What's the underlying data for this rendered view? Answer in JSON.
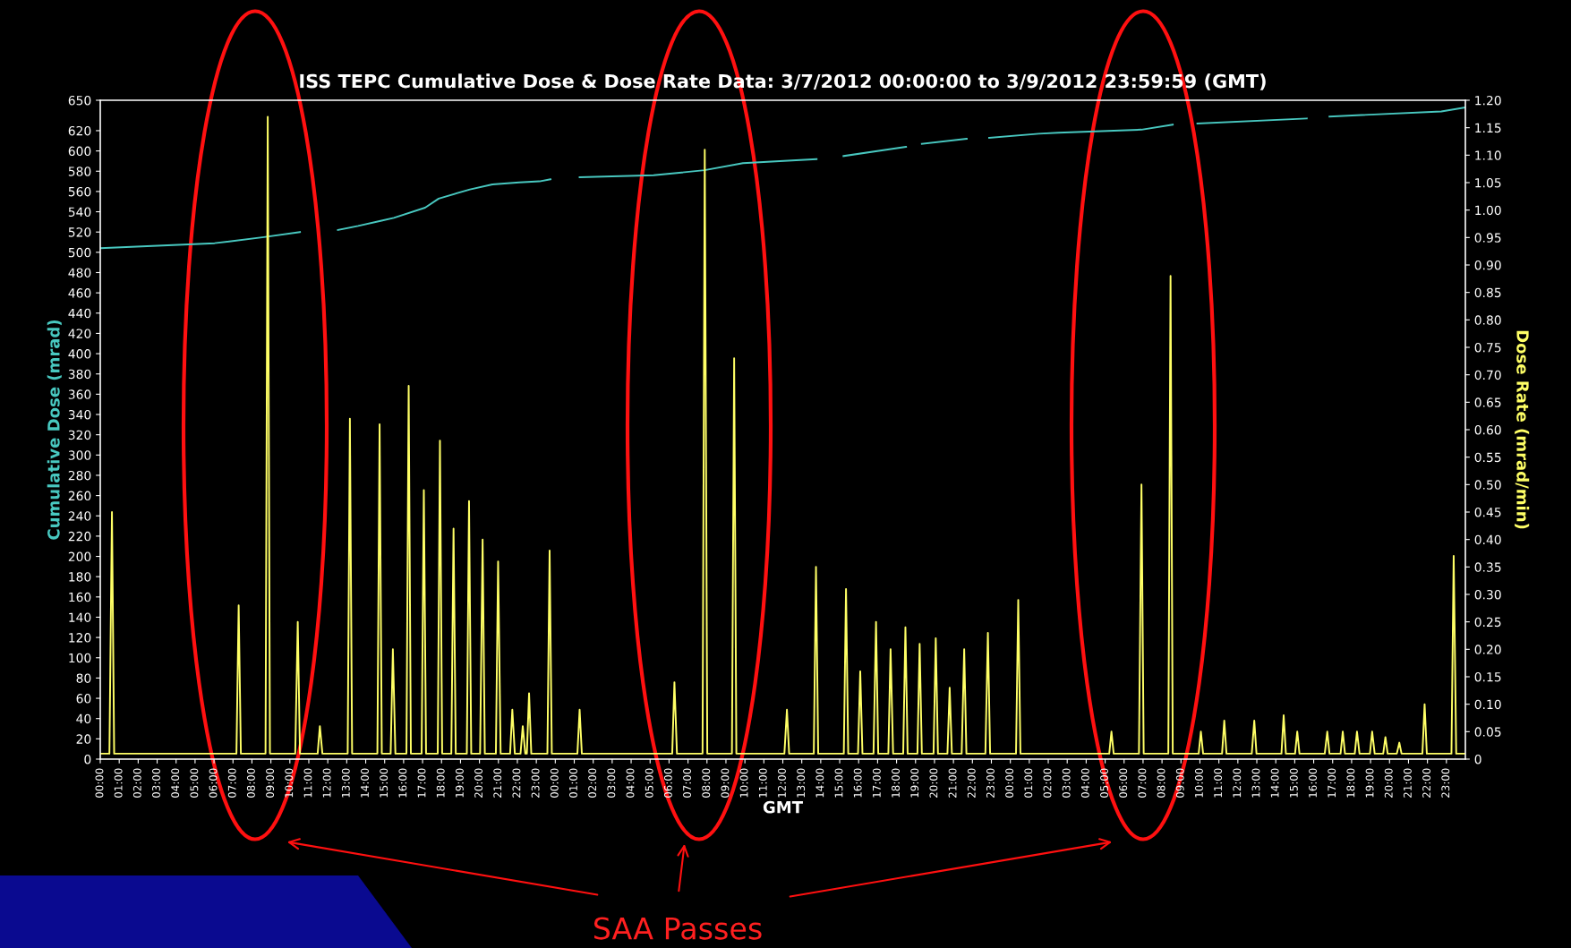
{
  "chart_data": {
    "type": "line",
    "title": "ISS TEPC Cumulative Dose & Dose Rate Data: 3/7/2012 00:00:00 to 3/9/2012 23:59:59 (GMT)",
    "xlabel": "GMT",
    "ylabel": "Cumulative Dose (mrad)",
    "y2label": "Dose Rate (mrad/min)",
    "annotations": [
      "SAA Passes"
    ],
    "xlim": [
      "2012-03-07T00:00",
      "2012-03-10T00:00"
    ],
    "xticks": [
      {
        "value": "2012-03-07T00:00",
        "label": "00:00"
      },
      {
        "value": "2012-03-07T01:00",
        "label": "01:00"
      },
      {
        "value": "2012-03-07T02:00",
        "label": "02:00"
      },
      {
        "value": "2012-03-07T03:00",
        "label": "03:00"
      },
      {
        "value": "2012-03-07T04:00",
        "label": "04:00"
      },
      {
        "value": "2012-03-07T05:00",
        "label": "05:00"
      },
      {
        "value": "2012-03-07T06:00",
        "label": "06:00"
      },
      {
        "value": "2012-03-07T07:00",
        "label": "07:00"
      },
      {
        "value": "2012-03-07T08:00",
        "label": "08:00"
      },
      {
        "value": "2012-03-07T09:00",
        "label": "09:00"
      },
      {
        "value": "2012-03-07T10:00",
        "label": "10:00"
      },
      {
        "value": "2012-03-07T11:00",
        "label": "11:00"
      },
      {
        "value": "2012-03-07T12:00",
        "label": "12:00"
      },
      {
        "value": "2012-03-07T13:00",
        "label": "13:00"
      },
      {
        "value": "2012-03-07T14:00",
        "label": "14:00"
      },
      {
        "value": "2012-03-07T15:00",
        "label": "15:00"
      },
      {
        "value": "2012-03-07T16:00",
        "label": "16:00"
      },
      {
        "value": "2012-03-07T17:00",
        "label": "17:00"
      },
      {
        "value": "2012-03-07T18:00",
        "label": "18:00"
      },
      {
        "value": "2012-03-07T19:00",
        "label": "19:00"
      },
      {
        "value": "2012-03-07T20:00",
        "label": "20:00"
      },
      {
        "value": "2012-03-07T21:00",
        "label": "21:00"
      },
      {
        "value": "2012-03-07T22:00",
        "label": "22:00"
      },
      {
        "value": "2012-03-07T23:00",
        "label": "23:00"
      },
      {
        "value": "2012-03-08T00:00",
        "label": "00:00"
      },
      {
        "value": "2012-03-08T01:00",
        "label": "01:00"
      },
      {
        "value": "2012-03-08T02:00",
        "label": "02:00"
      },
      {
        "value": "2012-03-08T03:00",
        "label": "03:00"
      },
      {
        "value": "2012-03-08T04:00",
        "label": "04:00"
      },
      {
        "value": "2012-03-08T05:00",
        "label": "05:00"
      },
      {
        "value": "2012-03-08T06:00",
        "label": "06:00"
      },
      {
        "value": "2012-03-08T07:00",
        "label": "07:00"
      },
      {
        "value": "2012-03-08T08:00",
        "label": "08:00"
      },
      {
        "value": "2012-03-08T09:00",
        "label": "09:00"
      },
      {
        "value": "2012-03-08T10:00",
        "label": "10:00"
      },
      {
        "value": "2012-03-08T11:00",
        "label": "11:00"
      },
      {
        "value": "2012-03-08T12:00",
        "label": "12:00"
      },
      {
        "value": "2012-03-08T13:00",
        "label": "13:00"
      },
      {
        "value": "2012-03-08T14:00",
        "label": "14:00"
      },
      {
        "value": "2012-03-08T15:00",
        "label": "15:00"
      },
      {
        "value": "2012-03-08T16:00",
        "label": "16:00"
      },
      {
        "value": "2012-03-08T17:00",
        "label": "17:00"
      },
      {
        "value": "2012-03-08T18:00",
        "label": "18:00"
      },
      {
        "value": "2012-03-08T19:00",
        "label": "19:00"
      },
      {
        "value": "2012-03-08T20:00",
        "label": "20:00"
      },
      {
        "value": "2012-03-08T21:00",
        "label": "21:00"
      },
      {
        "value": "2012-03-08T22:00",
        "label": "22:00"
      },
      {
        "value": "2012-03-08T23:00",
        "label": "23:00"
      },
      {
        "value": "2012-03-09T00:00",
        "label": "00:00"
      },
      {
        "value": "2012-03-09T01:00",
        "label": "01:00"
      },
      {
        "value": "2012-03-09T02:00",
        "label": "02:00"
      },
      {
        "value": "2012-03-09T03:00",
        "label": "03:00"
      },
      {
        "value": "2012-03-09T04:00",
        "label": "04:00"
      },
      {
        "value": "2012-03-09T05:00",
        "label": "05:00"
      },
      {
        "value": "2012-03-09T06:00",
        "label": "06:00"
      },
      {
        "value": "2012-03-09T07:00",
        "label": "07:00"
      },
      {
        "value": "2012-03-09T08:00",
        "label": "08:00"
      },
      {
        "value": "2012-03-09T09:00",
        "label": "09:00"
      },
      {
        "value": "2012-03-09T10:00",
        "label": "10:00"
      },
      {
        "value": "2012-03-09T11:00",
        "label": "11:00"
      },
      {
        "value": "2012-03-09T12:00",
        "label": "12:00"
      },
      {
        "value": "2012-03-09T13:00",
        "label": "13:00"
      },
      {
        "value": "2012-03-09T14:00",
        "label": "14:00"
      },
      {
        "value": "2012-03-09T15:00",
        "label": "15:00"
      },
      {
        "value": "2012-03-09T16:00",
        "label": "16:00"
      },
      {
        "value": "2012-03-09T17:00",
        "label": "17:00"
      },
      {
        "value": "2012-03-09T18:00",
        "label": "18:00"
      },
      {
        "value": "2012-03-09T19:00",
        "label": "19:00"
      },
      {
        "value": "2012-03-09T20:00",
        "label": "20:00"
      },
      {
        "value": "2012-03-09T21:00",
        "label": "21:00"
      },
      {
        "value": "2012-03-09T22:00",
        "label": "22:00"
      },
      {
        "value": "2012-03-09T23:00",
        "label": "23:00"
      }
    ],
    "ylim": [
      0,
      650
    ],
    "yticks": [
      0,
      20,
      40,
      60,
      80,
      100,
      120,
      140,
      160,
      180,
      200,
      220,
      240,
      260,
      280,
      300,
      320,
      340,
      360,
      380,
      400,
      420,
      440,
      460,
      480,
      500,
      520,
      540,
      560,
      580,
      600,
      620,
      650
    ],
    "y2lim": [
      0,
      1.2
    ],
    "y2ticks": [
      {
        "value": 0,
        "label": "0"
      },
      {
        "value": 0.05,
        "label": "0.05"
      },
      {
        "value": 0.1,
        "label": "0.10"
      },
      {
        "value": 0.15,
        "label": "0.15"
      },
      {
        "value": 0.2,
        "label": "0.20"
      },
      {
        "value": 0.25,
        "label": "0.25"
      },
      {
        "value": 0.3,
        "label": "0.30"
      },
      {
        "value": 0.35,
        "label": "0.35"
      },
      {
        "value": 0.4,
        "label": "0.40"
      },
      {
        "value": 0.45,
        "label": "0.45"
      },
      {
        "value": 0.5,
        "label": "0.50"
      },
      {
        "value": 0.55,
        "label": "0.55"
      },
      {
        "value": 0.6,
        "label": "0.60"
      },
      {
        "value": 0.65,
        "label": "0.65"
      },
      {
        "value": 0.7,
        "label": "0.70"
      },
      {
        "value": 0.75,
        "label": "0.75"
      },
      {
        "value": 0.8,
        "label": "0.80"
      },
      {
        "value": 0.85,
        "label": "0.85"
      },
      {
        "value": 0.9,
        "label": "0.90"
      },
      {
        "value": 0.95,
        "label": "0.95"
      },
      {
        "value": 1.0,
        "label": "1.00"
      },
      {
        "value": 1.05,
        "label": "1.05"
      },
      {
        "value": 1.1,
        "label": "1.10"
      },
      {
        "value": 1.15,
        "label": "1.15"
      },
      {
        "value": 1.2,
        "label": "1.20"
      }
    ],
    "grid": false,
    "marker": "none",
    "line_style": "solid",
    "series": [
      {
        "color": "#48c8c0",
        "x": [
          "2012-03-07T00:00",
          "2012-03-07T06:02",
          "2012-03-07T08:38",
          "2012-03-07T10:32",
          "2012-03-07T11:30",
          "2012-03-07T12:32",
          "2012-03-07T13:36",
          "2012-03-07T14:47",
          "2012-03-07T15:29",
          "2012-03-07T17:08",
          "2012-03-07T17:51",
          "2012-03-07T19:30",
          "2012-03-07T20:41",
          "2012-03-07T22:06",
          "2012-03-07T23:10",
          "2012-03-07T23:45",
          "2012-03-08T00:30",
          "2012-03-08T01:17",
          "2012-03-08T05:11",
          "2012-03-08T07:52",
          "2012-03-08T09:54",
          "2012-03-08T13:47",
          "2012-03-08T14:30",
          "2012-03-08T15:12",
          "2012-03-08T18:30",
          "2012-03-08T18:54",
          "2012-03-08T19:20",
          "2012-03-08T21:42",
          "2012-03-08T22:18",
          "2012-03-08T22:53",
          "2012-03-09T01:30",
          "2012-03-09T02:32",
          "2012-03-09T06:55",
          "2012-03-09T08:34",
          "2012-03-09T09:12",
          "2012-03-09T09:52",
          "2012-03-09T15:38",
          "2012-03-09T16:12",
          "2012-03-09T16:50",
          "2012-03-09T22:44",
          "2012-03-10T00:00"
        ],
        "values": [
          504,
          509,
          515,
          520,
          null,
          522,
          526,
          531,
          534,
          544,
          553,
          562,
          567,
          569,
          570,
          572,
          null,
          574,
          576,
          581,
          588,
          592,
          null,
          595,
          604,
          null,
          607,
          612,
          null,
          613,
          617,
          618,
          621,
          626,
          null,
          627,
          632,
          null,
          634,
          639,
          643
        ]
      },
      {
        "color": "#ffff66",
        "axis": "y2",
        "x": [
          "2012-03-07T00:00",
          "2012-03-07T00:29",
          "2012-03-07T00:37",
          "2012-03-07T00:44",
          "2012-03-07T07:11",
          "2012-03-07T07:18",
          "2012-03-07T07:25",
          "2012-03-07T08:43",
          "2012-03-07T08:50",
          "2012-03-07T08:57",
          "2012-03-07T10:17",
          "2012-03-07T10:25",
          "2012-03-07T10:32",
          "2012-03-07T11:28",
          "2012-03-07T11:35",
          "2012-03-07T11:43",
          "2012-03-07T13:03",
          "2012-03-07T13:10",
          "2012-03-07T13:17",
          "2012-03-07T14:37",
          "2012-03-07T14:44",
          "2012-03-07T14:51",
          "2012-03-07T15:19",
          "2012-03-07T15:26",
          "2012-03-07T15:34",
          "2012-03-07T16:09",
          "2012-03-07T16:16",
          "2012-03-07T16:23",
          "2012-03-07T16:57",
          "2012-03-07T17:04",
          "2012-03-07T17:11",
          "2012-03-07T17:48",
          "2012-03-07T17:55",
          "2012-03-07T18:02",
          "2012-03-07T18:31",
          "2012-03-07T18:38",
          "2012-03-07T18:45",
          "2012-03-07T19:20",
          "2012-03-07T19:27",
          "2012-03-07T19:34",
          "2012-03-07T20:02",
          "2012-03-07T20:10",
          "2012-03-07T20:17",
          "2012-03-07T20:52",
          "2012-03-07T20:59",
          "2012-03-07T21:07",
          "2012-03-07T21:37",
          "2012-03-07T21:44",
          "2012-03-07T21:52",
          "2012-03-07T22:10",
          "2012-03-07T22:17",
          "2012-03-07T22:25",
          "2012-03-07T22:30",
          "2012-03-07T22:37",
          "2012-03-07T22:44",
          "2012-03-07T23:35",
          "2012-03-07T23:42",
          "2012-03-07T23:49",
          "2012-03-08T01:10",
          "2012-03-08T01:17",
          "2012-03-08T01:24",
          "2012-03-08T06:10",
          "2012-03-08T06:17",
          "2012-03-08T06:25",
          "2012-03-08T07:46",
          "2012-03-08T07:53",
          "2012-03-08T08:01",
          "2012-03-08T09:19",
          "2012-03-08T09:26",
          "2012-03-08T09:33",
          "2012-03-08T12:05",
          "2012-03-08T12:13",
          "2012-03-08T12:20",
          "2012-03-08T13:38",
          "2012-03-08T13:45",
          "2012-03-08T13:52",
          "2012-03-08T15:13",
          "2012-03-08T15:20",
          "2012-03-08T15:27",
          "2012-03-08T15:58",
          "2012-03-08T16:05",
          "2012-03-08T16:12",
          "2012-03-08T16:47",
          "2012-03-08T16:55",
          "2012-03-08T17:02",
          "2012-03-08T17:34",
          "2012-03-08T17:41",
          "2012-03-08T17:49",
          "2012-03-08T18:21",
          "2012-03-08T18:28",
          "2012-03-08T18:35",
          "2012-03-08T19:06",
          "2012-03-08T19:13",
          "2012-03-08T19:20",
          "2012-03-08T19:57",
          "2012-03-08T20:04",
          "2012-03-08T20:11",
          "2012-03-08T20:41",
          "2012-03-08T20:48",
          "2012-03-08T20:55",
          "2012-03-08T21:26",
          "2012-03-08T21:34",
          "2012-03-08T21:41",
          "2012-03-08T22:41",
          "2012-03-08T22:49",
          "2012-03-08T22:56",
          "2012-03-09T00:18",
          "2012-03-09T00:25",
          "2012-03-09T00:32",
          "2012-03-09T05:13",
          "2012-03-09T05:20",
          "2012-03-09T05:27",
          "2012-03-09T06:47",
          "2012-03-09T06:55",
          "2012-03-09T07:02",
          "2012-03-09T08:20",
          "2012-03-09T08:27",
          "2012-03-09T08:34",
          "2012-03-09T09:56",
          "2012-03-09T10:03",
          "2012-03-09T10:10",
          "2012-03-09T11:10",
          "2012-03-09T11:17",
          "2012-03-09T11:24",
          "2012-03-09T12:44",
          "2012-03-09T12:52",
          "2012-03-09T12:59",
          "2012-03-09T14:18",
          "2012-03-09T14:25",
          "2012-03-09T14:32",
          "2012-03-09T15:01",
          "2012-03-09T15:08",
          "2012-03-09T15:15",
          "2012-03-09T16:35",
          "2012-03-09T16:43",
          "2012-03-09T16:50",
          "2012-03-09T17:25",
          "2012-03-09T17:32",
          "2012-03-09T17:39",
          "2012-03-09T18:10",
          "2012-03-09T18:17",
          "2012-03-09T18:25",
          "2012-03-09T18:58",
          "2012-03-09T19:05",
          "2012-03-09T19:13",
          "2012-03-09T19:40",
          "2012-03-09T19:47",
          "2012-03-09T19:54",
          "2012-03-09T20:23",
          "2012-03-09T20:31",
          "2012-03-09T20:38",
          "2012-03-09T21:44",
          "2012-03-09T21:51",
          "2012-03-09T21:58",
          "2012-03-09T23:16",
          "2012-03-09T23:23",
          "2012-03-09T23:31",
          "2012-03-10T00:00"
        ],
        "values": [
          0.01,
          0.01,
          0.45,
          0.01,
          0.01,
          0.28,
          0.01,
          0.01,
          1.17,
          0.01,
          0.01,
          0.25,
          0.01,
          0.01,
          0.06,
          0.01,
          0.01,
          0.62,
          0.01,
          0.01,
          0.61,
          0.01,
          0.01,
          0.2,
          0.01,
          0.01,
          0.68,
          0.01,
          0.01,
          0.49,
          0.01,
          0.01,
          0.58,
          0.01,
          0.01,
          0.42,
          0.01,
          0.01,
          0.47,
          0.01,
          0.01,
          0.4,
          0.01,
          0.01,
          0.36,
          0.01,
          0.01,
          0.09,
          0.01,
          0.01,
          0.06,
          0.01,
          0.01,
          0.12,
          0.01,
          0.01,
          0.38,
          0.01,
          0.01,
          0.09,
          0.01,
          0.01,
          0.14,
          0.01,
          0.01,
          1.11,
          0.01,
          0.01,
          0.73,
          0.01,
          0.01,
          0.09,
          0.01,
          0.01,
          0.35,
          0.01,
          0.01,
          0.31,
          0.01,
          0.01,
          0.16,
          0.01,
          0.01,
          0.25,
          0.01,
          0.01,
          0.2,
          0.01,
          0.01,
          0.24,
          0.01,
          0.01,
          0.21,
          0.01,
          0.01,
          0.22,
          0.01,
          0.01,
          0.13,
          0.01,
          0.01,
          0.2,
          0.01,
          0.01,
          0.23,
          0.01,
          0.01,
          0.29,
          0.01,
          0.01,
          0.05,
          0.01,
          0.01,
          0.5,
          0.01,
          0.01,
          0.88,
          0.01,
          0.01,
          0.05,
          0.01,
          0.01,
          0.07,
          0.01,
          0.01,
          0.07,
          0.01,
          0.01,
          0.08,
          0.01,
          0.01,
          0.05,
          0.01,
          0.01,
          0.05,
          0.01,
          0.01,
          0.05,
          0.01,
          0.01,
          0.05,
          0.01,
          0.01,
          0.05,
          0.01,
          0.01,
          0.04,
          0.01,
          0.01,
          0.03,
          0.01,
          0.01,
          0.1,
          0.01,
          0.01,
          0.37,
          0.01,
          0.01
        ]
      }
    ]
  }
}
